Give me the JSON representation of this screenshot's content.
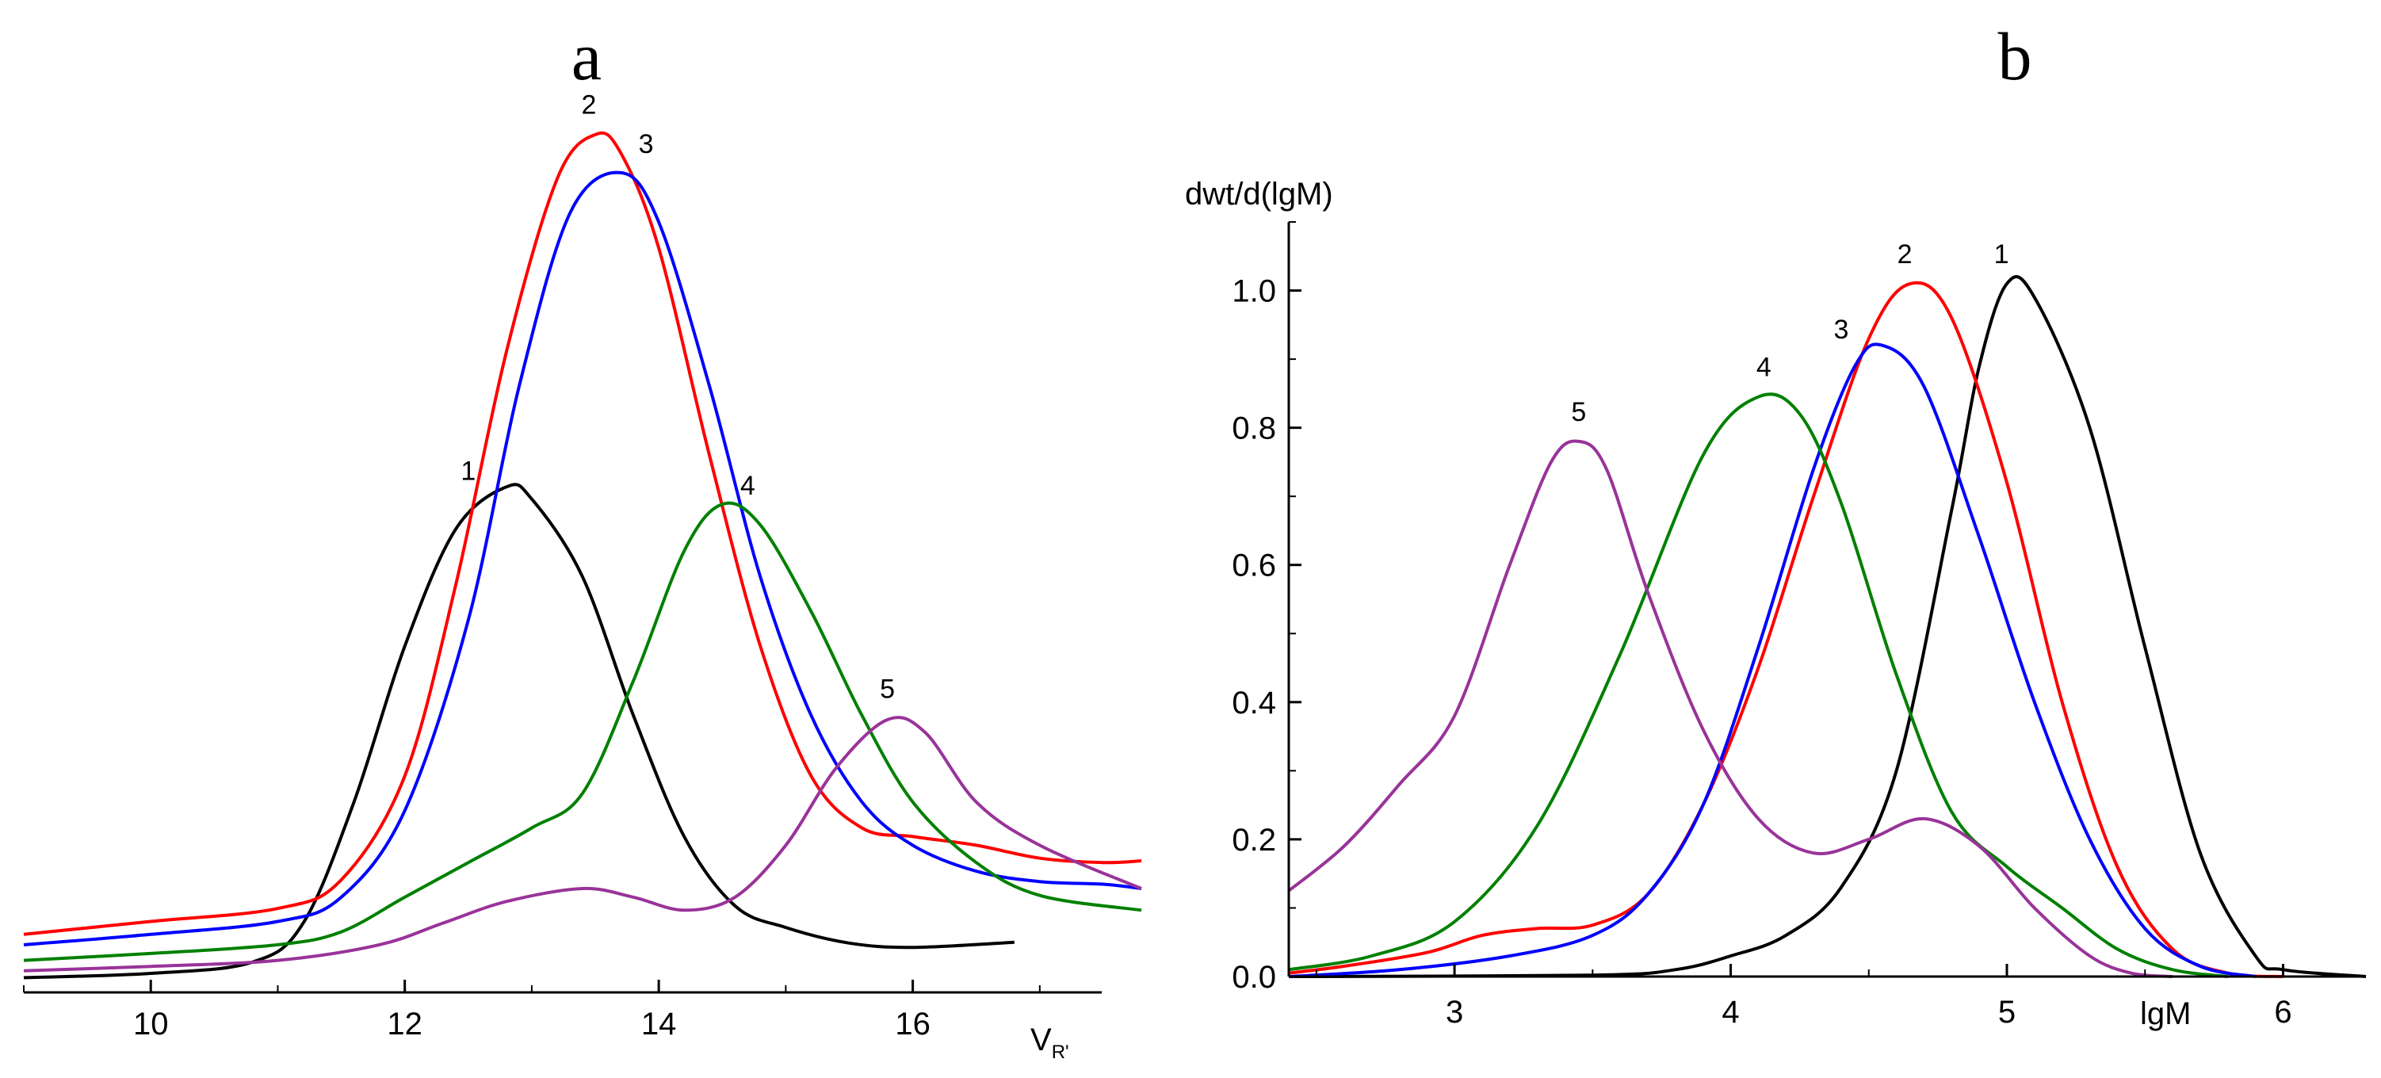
{
  "chart_data": [
    {
      "type": "line",
      "panel_label": "a",
      "xlabel": "V",
      "xlabel_subscript": "R'",
      "ylabel": "",
      "xlim": [
        9,
        17.8
      ],
      "ylim": [
        0,
        1
      ],
      "x_ticks": [
        10,
        12,
        14,
        16
      ],
      "y_ticks": [],
      "grid": false,
      "legend": "none",
      "series": [
        {
          "name": "1",
          "color": "#000000",
          "label_at": [
            12.5,
            0.592
          ],
          "points": [
            [
              9.0,
              0.017
            ],
            [
              10.0,
              0.022
            ],
            [
              10.8,
              0.035
            ],
            [
              11.2,
              0.08
            ],
            [
              11.6,
              0.22
            ],
            [
              12.0,
              0.4
            ],
            [
              12.4,
              0.535
            ],
            [
              12.8,
              0.584
            ],
            [
              13.0,
              0.57
            ],
            [
              13.4,
              0.48
            ],
            [
              13.8,
              0.32
            ],
            [
              14.2,
              0.18
            ],
            [
              14.6,
              0.1
            ],
            [
              15.0,
              0.075
            ],
            [
              15.5,
              0.057
            ],
            [
              16.0,
              0.052
            ],
            [
              16.8,
              0.058
            ]
          ]
        },
        {
          "name": "2",
          "color": "#ff0000",
          "label_at": [
            13.45,
            1.015
          ],
          "points": [
            [
              9.0,
              0.067
            ],
            [
              10.0,
              0.082
            ],
            [
              11.0,
              0.097
            ],
            [
              11.5,
              0.13
            ],
            [
              12.0,
              0.25
            ],
            [
              12.4,
              0.47
            ],
            [
              12.8,
              0.74
            ],
            [
              13.2,
              0.94
            ],
            [
              13.5,
              0.991
            ],
            [
              13.7,
              0.97
            ],
            [
              14.0,
              0.86
            ],
            [
              14.4,
              0.62
            ],
            [
              14.8,
              0.4
            ],
            [
              15.2,
              0.25
            ],
            [
              15.6,
              0.19
            ],
            [
              16.0,
              0.18
            ],
            [
              16.5,
              0.17
            ],
            [
              17.0,
              0.155
            ],
            [
              17.5,
              0.15
            ],
            [
              17.8,
              0.152
            ]
          ]
        },
        {
          "name": "3",
          "color": "#0000ff",
          "label_at": [
            13.9,
            0.97
          ],
          "points": [
            [
              9.0,
              0.055
            ],
            [
              10.0,
              0.067
            ],
            [
              11.0,
              0.082
            ],
            [
              11.5,
              0.11
            ],
            [
              12.0,
              0.21
            ],
            [
              12.5,
              0.43
            ],
            [
              12.9,
              0.7
            ],
            [
              13.3,
              0.9
            ],
            [
              13.7,
              0.947
            ],
            [
              14.0,
              0.89
            ],
            [
              14.4,
              0.7
            ],
            [
              14.8,
              0.48
            ],
            [
              15.2,
              0.32
            ],
            [
              15.6,
              0.22
            ],
            [
              16.0,
              0.17
            ],
            [
              16.5,
              0.14
            ],
            [
              17.0,
              0.128
            ],
            [
              17.5,
              0.125
            ],
            [
              17.8,
              0.12
            ]
          ]
        },
        {
          "name": "4",
          "color": "#008000",
          "label_at": [
            14.7,
            0.575
          ],
          "points": [
            [
              9.0,
              0.037
            ],
            [
              10.0,
              0.045
            ],
            [
              11.0,
              0.055
            ],
            [
              11.5,
              0.07
            ],
            [
              12.0,
              0.11
            ],
            [
              12.5,
              0.15
            ],
            [
              13.0,
              0.19
            ],
            [
              13.4,
              0.23
            ],
            [
              13.8,
              0.36
            ],
            [
              14.2,
              0.51
            ],
            [
              14.5,
              0.564
            ],
            [
              14.8,
              0.54
            ],
            [
              15.2,
              0.44
            ],
            [
              15.6,
              0.32
            ],
            [
              16.0,
              0.22
            ],
            [
              16.5,
              0.15
            ],
            [
              17.0,
              0.112
            ],
            [
              17.8,
              0.095
            ]
          ]
        },
        {
          "name": "5",
          "color": "#993399",
          "label_at": [
            15.8,
            0.34
          ],
          "points": [
            [
              9.0,
              0.025
            ],
            [
              10.0,
              0.03
            ],
            [
              11.0,
              0.037
            ],
            [
              11.8,
              0.055
            ],
            [
              12.3,
              0.08
            ],
            [
              12.8,
              0.105
            ],
            [
              13.4,
              0.12
            ],
            [
              13.8,
              0.11
            ],
            [
              14.2,
              0.095
            ],
            [
              14.6,
              0.11
            ],
            [
              15.0,
              0.17
            ],
            [
              15.4,
              0.26
            ],
            [
              15.8,
              0.315
            ],
            [
              16.1,
              0.3
            ],
            [
              16.5,
              0.22
            ],
            [
              17.0,
              0.17
            ],
            [
              17.8,
              0.12
            ]
          ]
        }
      ]
    },
    {
      "type": "line",
      "panel_label": "b",
      "xlabel": "lgM",
      "ylabel": "dwt/d(lgM)",
      "xlim": [
        2.4,
        6.3
      ],
      "ylim": [
        0,
        1.1
      ],
      "x_ticks": [
        3,
        4,
        5,
        6
      ],
      "y_ticks": [
        0.0,
        0.2,
        0.4,
        0.6,
        0.8,
        1.0
      ],
      "y_tick_labels": [
        "0.0",
        "0.2",
        "0.4",
        "0.6",
        "0.8",
        "1.0"
      ],
      "grid": false,
      "legend": "none",
      "series": [
        {
          "name": "1",
          "color": "#000000",
          "label_at": [
            4.98,
            1.04
          ],
          "points": [
            [
              2.4,
              0.0
            ],
            [
              3.5,
              0.002
            ],
            [
              3.8,
              0.01
            ],
            [
              4.0,
              0.03
            ],
            [
              4.2,
              0.06
            ],
            [
              4.4,
              0.13
            ],
            [
              4.6,
              0.3
            ],
            [
              4.8,
              0.68
            ],
            [
              4.9,
              0.89
            ],
            [
              5.0,
              1.01
            ],
            [
              5.1,
              0.99
            ],
            [
              5.3,
              0.8
            ],
            [
              5.5,
              0.48
            ],
            [
              5.7,
              0.18
            ],
            [
              5.9,
              0.03
            ],
            [
              6.0,
              0.01
            ],
            [
              6.3,
              0.0
            ]
          ]
        },
        {
          "name": "2",
          "color": "#ff0000",
          "label_at": [
            4.63,
            1.04
          ],
          "points": [
            [
              2.4,
              0.005
            ],
            [
              2.6,
              0.015
            ],
            [
              2.9,
              0.035
            ],
            [
              3.1,
              0.06
            ],
            [
              3.3,
              0.07
            ],
            [
              3.5,
              0.075
            ],
            [
              3.7,
              0.12
            ],
            [
              3.9,
              0.25
            ],
            [
              4.1,
              0.45
            ],
            [
              4.3,
              0.7
            ],
            [
              4.5,
              0.93
            ],
            [
              4.65,
              1.01
            ],
            [
              4.8,
              0.96
            ],
            [
              5.0,
              0.72
            ],
            [
              5.2,
              0.4
            ],
            [
              5.4,
              0.16
            ],
            [
              5.6,
              0.04
            ],
            [
              5.8,
              0.005
            ],
            [
              6.0,
              0.0
            ]
          ]
        },
        {
          "name": "3",
          "color": "#0000ff",
          "label_at": [
            4.4,
            0.93
          ],
          "points": [
            [
              2.4,
              0.0
            ],
            [
              2.8,
              0.01
            ],
            [
              3.2,
              0.03
            ],
            [
              3.5,
              0.06
            ],
            [
              3.7,
              0.12
            ],
            [
              3.9,
              0.25
            ],
            [
              4.1,
              0.48
            ],
            [
              4.3,
              0.74
            ],
            [
              4.45,
              0.89
            ],
            [
              4.55,
              0.92
            ],
            [
              4.7,
              0.86
            ],
            [
              4.9,
              0.64
            ],
            [
              5.1,
              0.4
            ],
            [
              5.3,
              0.2
            ],
            [
              5.5,
              0.07
            ],
            [
              5.7,
              0.015
            ],
            [
              5.9,
              0.0
            ]
          ]
        },
        {
          "name": "4",
          "color": "#008000",
          "label_at": [
            4.12,
            0.875
          ],
          "points": [
            [
              2.4,
              0.01
            ],
            [
              2.7,
              0.03
            ],
            [
              3.0,
              0.08
            ],
            [
              3.3,
              0.22
            ],
            [
              3.6,
              0.47
            ],
            [
              3.9,
              0.76
            ],
            [
              4.1,
              0.845
            ],
            [
              4.25,
              0.82
            ],
            [
              4.4,
              0.69
            ],
            [
              4.6,
              0.44
            ],
            [
              4.8,
              0.24
            ],
            [
              5.0,
              0.16
            ],
            [
              5.2,
              0.1
            ],
            [
              5.4,
              0.04
            ],
            [
              5.6,
              0.01
            ],
            [
              5.8,
              0.0
            ]
          ]
        },
        {
          "name": "5",
          "color": "#993399",
          "label_at": [
            3.45,
            0.81
          ],
          "points": [
            [
              2.4,
              0.125
            ],
            [
              2.6,
              0.19
            ],
            [
              2.8,
              0.28
            ],
            [
              3.0,
              0.38
            ],
            [
              3.2,
              0.6
            ],
            [
              3.35,
              0.75
            ],
            [
              3.45,
              0.78
            ],
            [
              3.55,
              0.74
            ],
            [
              3.7,
              0.56
            ],
            [
              3.9,
              0.36
            ],
            [
              4.1,
              0.23
            ],
            [
              4.3,
              0.18
            ],
            [
              4.5,
              0.2
            ],
            [
              4.7,
              0.23
            ],
            [
              4.9,
              0.19
            ],
            [
              5.1,
              0.1
            ],
            [
              5.3,
              0.03
            ],
            [
              5.45,
              0.005
            ],
            [
              5.6,
              0.0
            ]
          ]
        }
      ]
    }
  ]
}
